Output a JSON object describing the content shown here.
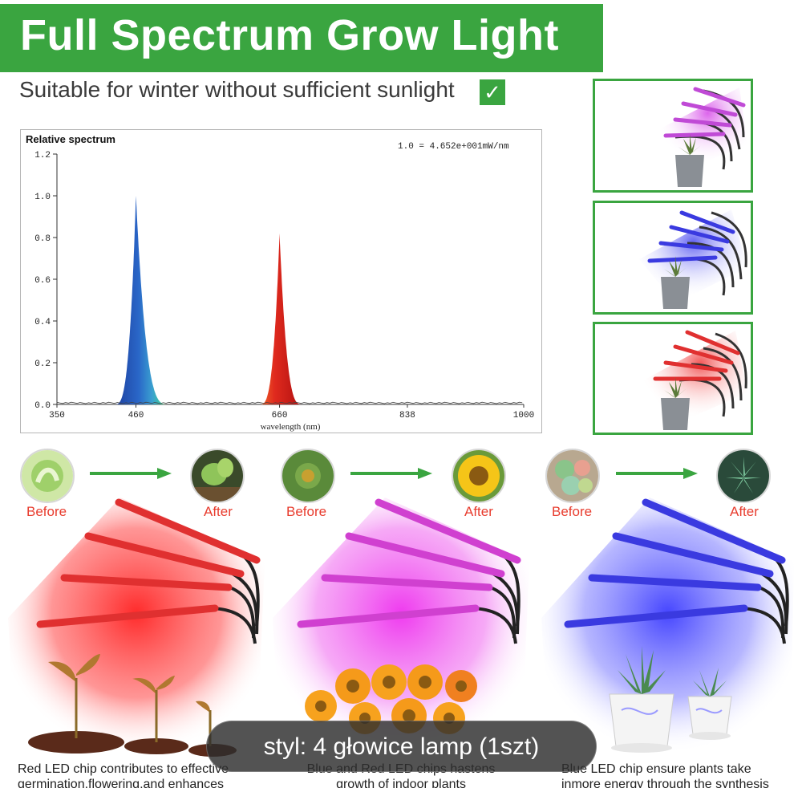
{
  "title": "Full Spectrum Grow Light",
  "subtitle": "Suitable for winter without sufficient sunlight",
  "check_mark": "✓",
  "chart_data": {
    "type": "area",
    "title": "Relative spectrum",
    "annotation": "1.0 = 4.652e+001mW/nm",
    "xlabel": "wavelength (nm)",
    "ylabel": "",
    "xlim": [
      350,
      1000
    ],
    "ylim": [
      0,
      1.2
    ],
    "x_ticks": [
      "350",
      "460",
      "660",
      "838",
      "1000"
    ],
    "y_ticks": [
      "0.0",
      "0.2",
      "0.4",
      "0.6",
      "0.8",
      "1.0",
      "1.2"
    ],
    "grid": false,
    "series": [
      {
        "name": "",
        "peak_x": 460,
        "peak_y": 1.0,
        "color": "#1f5fb5"
      },
      {
        "name": "",
        "peak_x": 660,
        "peak_y": 0.82,
        "color": "#d62020"
      }
    ],
    "peaks": [
      {
        "x": 460,
        "y": 1.0
      },
      {
        "x": 660,
        "y": 0.82
      }
    ]
  },
  "side_scenes": [
    {
      "icon": "purple-grow-light-icon",
      "color": "#c040e0"
    },
    {
      "icon": "blue-grow-light-icon",
      "color": "#3a3ae0"
    },
    {
      "icon": "red-grow-light-icon",
      "color": "#e03030"
    }
  ],
  "comparisons": [
    {
      "before": "Before",
      "after": "After",
      "before_icon": "seedling-icon",
      "after_icon": "sprout-icon"
    },
    {
      "before": "Before",
      "after": "After",
      "before_icon": "flower-bud-icon",
      "after_icon": "sunflower-icon"
    },
    {
      "before": "Before",
      "after": "After",
      "before_icon": "succulents-icon",
      "after_icon": "succulent-icon"
    }
  ],
  "lamp_scenes": [
    {
      "color": "#ff2a2a",
      "plants": "seedlings"
    },
    {
      "color": "#ee3cee",
      "plants": "flowers"
    },
    {
      "color": "#4646ff",
      "plants": "succulent-pots"
    }
  ],
  "captions": [
    {
      "line1": "Red LED chip contributes to effective",
      "line2": "germination,flowering,and enhances"
    },
    {
      "line1": "Blue and Red LED chips hastens",
      "line2": "growth of indoor plants"
    },
    {
      "line1": "Blue LED chip ensure plants take",
      "line2": "inmore energy through the synthesis"
    }
  ],
  "style_label": "styl: 4 głowice lamp (1szt)"
}
